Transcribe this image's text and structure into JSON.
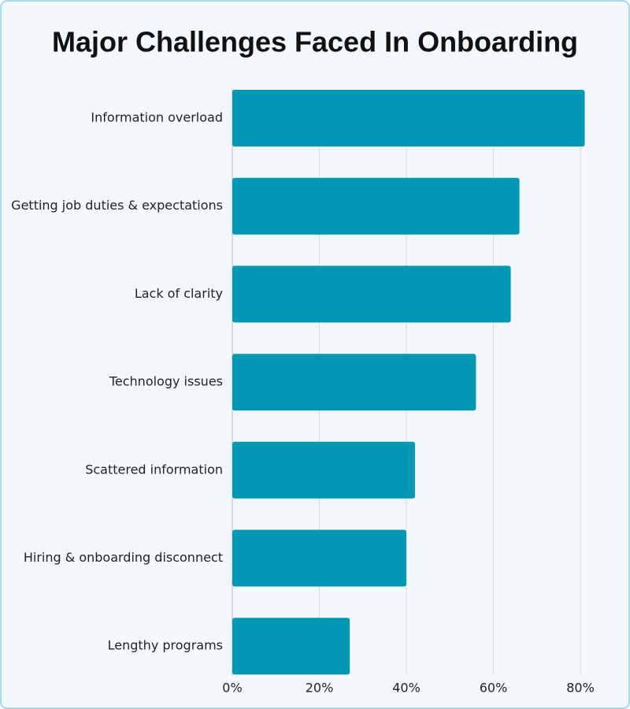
{
  "chart_data": {
    "type": "hbar",
    "title": "Major Challenges Faced In Onboarding",
    "categories": [
      "Information overload",
      "Getting job duties & expectations",
      "Lack of clarity",
      "Technology issues",
      "Scattered information",
      "Hiring & onboarding disconnect",
      "Lengthy programs"
    ],
    "values": [
      81,
      66,
      64,
      56,
      42,
      40,
      27
    ],
    "color": "#0098b3",
    "xlim": [
      0,
      85
    ],
    "xticks": [
      {
        "value": 0,
        "label": "0%"
      },
      {
        "value": 20,
        "label": "20%"
      },
      {
        "value": 40,
        "label": "40%"
      },
      {
        "value": 60,
        "label": "60%"
      },
      {
        "value": 80,
        "label": "80%"
      }
    ],
    "grid": true
  }
}
